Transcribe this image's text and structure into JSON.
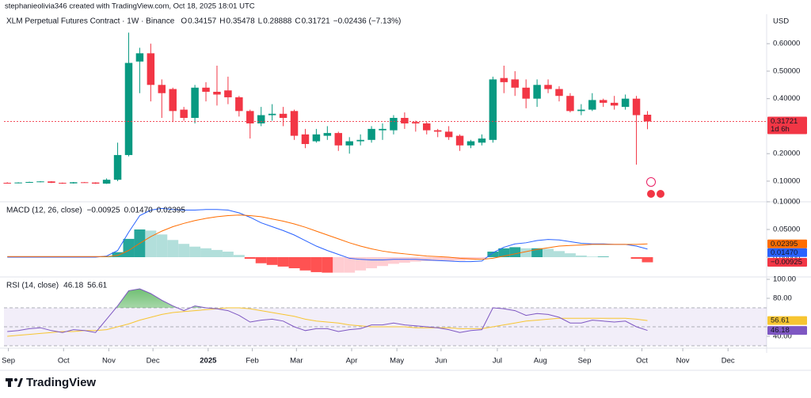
{
  "header": {
    "attribution": "stephanieolivia346 created with TradingView.com, Oct 18, 2025 18:01 UTC"
  },
  "footer": {
    "brand": "TradingView"
  },
  "chart_data": [
    {
      "type": "candlestick",
      "title": "XLM Perpetual Futures Contract · 1W · Binance",
      "ohlc_letters": [
        "O",
        "H",
        "L",
        "C"
      ],
      "change": "−0.02436 (−7.13%)",
      "currency": "USD",
      "countdown": "1d 6h",
      "up_color": "#089981",
      "down_color": "#f23645",
      "open": [
        0.094,
        0.093,
        0.095,
        0.097,
        0.099,
        0.094,
        0.092,
        0.096,
        0.095,
        0.091,
        0.105,
        0.195,
        0.535,
        0.565,
        0.45,
        0.435,
        0.36,
        0.33,
        0.44,
        0.425,
        0.43,
        0.405,
        0.355,
        0.31,
        0.34,
        0.345,
        0.355,
        0.27,
        0.245,
        0.265,
        0.275,
        0.23,
        0.245,
        0.25,
        0.285,
        0.285,
        0.33,
        0.315,
        0.31,
        0.285,
        0.28,
        0.265,
        0.23,
        0.24,
        0.25,
        0.475,
        0.47,
        0.44,
        0.4,
        0.45,
        0.435,
        0.41,
        0.355,
        0.36,
        0.395,
        0.385,
        0.37,
        0.4,
        0.34157
      ],
      "high": [
        0.096,
        0.096,
        0.098,
        0.1,
        0.1,
        0.095,
        0.097,
        0.097,
        0.096,
        0.11,
        0.24,
        0.64,
        0.585,
        0.6,
        0.47,
        0.44,
        0.37,
        0.45,
        0.46,
        0.52,
        0.48,
        0.41,
        0.36,
        0.37,
        0.38,
        0.37,
        0.36,
        0.29,
        0.29,
        0.3,
        0.28,
        0.26,
        0.27,
        0.3,
        0.31,
        0.34,
        0.35,
        0.32,
        0.315,
        0.29,
        0.3,
        0.27,
        0.25,
        0.27,
        0.48,
        0.52,
        0.5,
        0.47,
        0.47,
        0.47,
        0.445,
        0.42,
        0.38,
        0.42,
        0.4,
        0.41,
        0.415,
        0.41,
        0.35478
      ],
      "low": [
        0.091,
        0.092,
        0.094,
        0.096,
        0.093,
        0.09,
        0.091,
        0.094,
        0.09,
        0.09,
        0.1,
        0.19,
        0.42,
        0.39,
        0.33,
        0.315,
        0.32,
        0.31,
        0.39,
        0.375,
        0.38,
        0.335,
        0.255,
        0.3,
        0.32,
        0.3,
        0.25,
        0.22,
        0.24,
        0.25,
        0.21,
        0.2,
        0.23,
        0.24,
        0.25,
        0.27,
        0.29,
        0.28,
        0.27,
        0.26,
        0.25,
        0.21,
        0.22,
        0.23,
        0.24,
        0.42,
        0.41,
        0.365,
        0.37,
        0.42,
        0.39,
        0.35,
        0.34,
        0.355,
        0.37,
        0.36,
        0.36,
        0.16,
        0.28888
      ],
      "close": [
        0.093,
        0.095,
        0.097,
        0.099,
        0.094,
        0.092,
        0.096,
        0.095,
        0.091,
        0.105,
        0.195,
        0.53,
        0.565,
        0.45,
        0.42,
        0.355,
        0.33,
        0.44,
        0.425,
        0.415,
        0.405,
        0.355,
        0.31,
        0.34,
        0.345,
        0.33,
        0.265,
        0.235,
        0.27,
        0.275,
        0.23,
        0.245,
        0.25,
        0.29,
        0.29,
        0.33,
        0.31,
        0.31,
        0.285,
        0.28,
        0.26,
        0.23,
        0.245,
        0.255,
        0.47,
        0.46,
        0.44,
        0.4,
        0.45,
        0.435,
        0.41,
        0.355,
        0.36,
        0.395,
        0.385,
        0.375,
        0.4,
        0.34,
        0.31721
      ],
      "ylim": [
        0.025,
        0.707
      ],
      "yticks": [
        {
          "value": 0.1,
          "label": "0.10000"
        },
        {
          "value": 0.2,
          "label": "0.20000"
        },
        {
          "value": 0.4,
          "label": "0.40000"
        },
        {
          "value": 0.5,
          "label": "0.50000"
        },
        {
          "value": 0.6,
          "label": "0.60000"
        }
      ],
      "xlim": [
        -0.3,
        68.8
      ],
      "xticks": [
        {
          "value": 0.1,
          "label": "Sep"
        },
        {
          "value": 5.1,
          "label": "Oct"
        },
        {
          "value": 9.2,
          "label": "Nov"
        },
        {
          "value": 13.2,
          "label": "Dec"
        },
        {
          "value": 18.2,
          "label": "2025"
        },
        {
          "value": 22.2,
          "label": "Feb"
        },
        {
          "value": 26.2,
          "label": "Mar"
        },
        {
          "value": 31.2,
          "label": "Apr"
        },
        {
          "value": 35.3,
          "label": "May"
        },
        {
          "value": 39.3,
          "label": "Jun"
        },
        {
          "value": 44.4,
          "label": "Jul"
        },
        {
          "value": 48.3,
          "label": "Aug"
        },
        {
          "value": 52.3,
          "label": "Sep"
        },
        {
          "value": 57.5,
          "label": "Oct"
        },
        {
          "value": 61.2,
          "label": "Nov"
        },
        {
          "value": 65.3,
          "label": "Dec"
        }
      ]
    },
    {
      "type": "macd",
      "title": "MACD (12, 26, close)",
      "histogram_colors": [
        "#26a69a",
        "#b2dfdb",
        "#ff5252",
        "#ffcdd2"
      ],
      "macd_color": "#2962ff",
      "signal_color": "#ff6d00",
      "histogram": [
        0,
        0,
        0,
        0,
        0,
        0,
        0,
        0,
        0,
        0.001,
        0.009,
        0.033,
        0.05,
        0.048,
        0.041,
        0.031,
        0.024,
        0.019,
        0.016,
        0.013,
        0.01,
        0.004,
        -0.003,
        -0.011,
        -0.014,
        -0.017,
        -0.02,
        -0.024,
        -0.027,
        -0.028,
        -0.028,
        -0.028,
        -0.024,
        -0.02,
        -0.016,
        -0.012,
        -0.01,
        -0.008,
        -0.007,
        -0.007,
        -0.007,
        -0.006,
        -0.005,
        -0.003,
        0.01,
        0.016,
        0.018,
        0.016,
        0.016,
        0.015,
        0.011,
        0.007,
        0.003,
        0.001,
        0.001,
        0,
        0,
        -0.003,
        -0.00925
      ],
      "macd": [
        0,
        0,
        0,
        0,
        0,
        0,
        0,
        0,
        0,
        0.002,
        0.012,
        0.045,
        0.075,
        0.085,
        0.088,
        0.086,
        0.085,
        0.085,
        0.086,
        0.086,
        0.085,
        0.08,
        0.072,
        0.062,
        0.055,
        0.048,
        0.04,
        0.03,
        0.02,
        0.012,
        0.005,
        -0.002,
        -0.004,
        -0.005,
        -0.005,
        -0.004,
        -0.004,
        -0.004,
        -0.005,
        -0.006,
        -0.007,
        -0.008,
        -0.008,
        -0.007,
        0.008,
        0.018,
        0.024,
        0.026,
        0.03,
        0.032,
        0.031,
        0.028,
        0.025,
        0.024,
        0.024,
        0.023,
        0.023,
        0.02,
        0.0147
      ],
      "signal": [
        0.001,
        0.001,
        0.001,
        0.001,
        0.001,
        0.001,
        0.001,
        0.001,
        0.001,
        0.001,
        0.003,
        0.012,
        0.025,
        0.037,
        0.047,
        0.055,
        0.061,
        0.066,
        0.07,
        0.073,
        0.075,
        0.076,
        0.075,
        0.073,
        0.069,
        0.065,
        0.06,
        0.054,
        0.047,
        0.04,
        0.033,
        0.026,
        0.02,
        0.015,
        0.011,
        0.008,
        0.006,
        0.004,
        0.002,
        0.001,
        0,
        -0.002,
        -0.003,
        -0.004,
        -0.002,
        0.002,
        0.006,
        0.01,
        0.014,
        0.017,
        0.02,
        0.021,
        0.022,
        0.023,
        0.023,
        0.023,
        0.023,
        0.023,
        0.02395
      ],
      "legend_values": [
        "−0.00925",
        "0.01470",
        "0.02395"
      ],
      "ylim": [
        -0.0357,
        0.1
      ],
      "yticks": [
        {
          "value": 0,
          "label": "0.00000"
        },
        {
          "value": 0.05,
          "label": "0.05000"
        },
        {
          "value": 0.1,
          "label": "0.10000"
        }
      ]
    },
    {
      "type": "rsi",
      "title": "RSI (14, close)",
      "rsi_color": "#7e57c2",
      "ma_color": "#f7c531",
      "band_color": "rgba(126,87,194,0.1)",
      "overbought_color": "#4caf50",
      "rsi": [
        45,
        46,
        48,
        49,
        46,
        44,
        47,
        46,
        44,
        58,
        72,
        88,
        90,
        85,
        78,
        72,
        67,
        72,
        70,
        69,
        67,
        62,
        55,
        57,
        58,
        56,
        50,
        46,
        48,
        48,
        45,
        47,
        48,
        52,
        52,
        54,
        52,
        51,
        50,
        49,
        47,
        44,
        46,
        47,
        70,
        69,
        67,
        62,
        64,
        63,
        60,
        54,
        54,
        57,
        56,
        55,
        56,
        50,
        46.18
      ],
      "ma": [
        40,
        41,
        42,
        43,
        44,
        45,
        45,
        46,
        46,
        47,
        50,
        53,
        57,
        60,
        63,
        65,
        66,
        67,
        68,
        69,
        70,
        70,
        69,
        67,
        65,
        63,
        61,
        58,
        56,
        55,
        54,
        52,
        51,
        50,
        50,
        50,
        50,
        49,
        49,
        49,
        49,
        48,
        48,
        48,
        50,
        52,
        54,
        56,
        57,
        58,
        59,
        59,
        59,
        59,
        59,
        59,
        59,
        58,
        56.61
      ],
      "bands": [
        30,
        70
      ],
      "midline": 50,
      "ylim": [
        27.5,
        102.5
      ],
      "yticks": [
        {
          "value": 40,
          "label": "40.00"
        },
        {
          "value": 80,
          "label": "80.00"
        },
        {
          "value": 100,
          "label": "100.00"
        }
      ]
    }
  ]
}
